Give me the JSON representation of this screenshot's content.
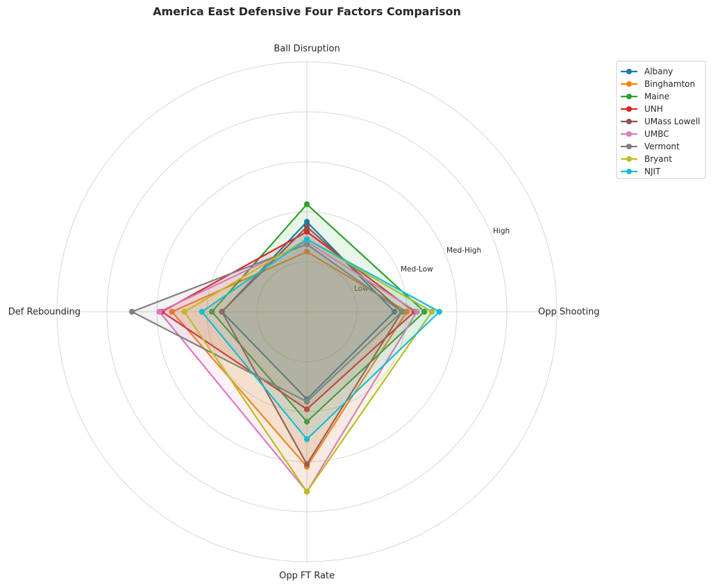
{
  "chart_data": {
    "type": "radar",
    "title": "America East Defensive Four Factors Comparison",
    "axes": [
      "Ball Disruption",
      "Opp Shooting",
      "Opp FT Rate",
      "Def Rebounding"
    ],
    "rlim": [
      0,
      5
    ],
    "ring_labels": [
      {
        "value": 1,
        "label": "Low"
      },
      {
        "value": 2,
        "label": "Med-Low"
      },
      {
        "value": 3,
        "label": "Med-High"
      },
      {
        "value": 4,
        "label": "High"
      }
    ],
    "grid": true,
    "legend_position": "upper-right-outside",
    "series": [
      {
        "name": "Albany",
        "color": "#1f77b4",
        "values": [
          1.8,
          1.75,
          1.75,
          1.7
        ]
      },
      {
        "name": "Binghamton",
        "color": "#ff7f0e",
        "values": [
          1.2,
          2.0,
          3.1,
          2.7
        ]
      },
      {
        "name": "Maine",
        "color": "#2ca02c",
        "values": [
          2.15,
          2.35,
          2.2,
          1.9
        ]
      },
      {
        "name": "UNH",
        "color": "#d62728",
        "values": [
          1.6,
          2.15,
          1.95,
          2.9
        ]
      },
      {
        "name": "UMass Lowell",
        "color": "#8c564b",
        "values": [
          1.7,
          1.9,
          3.05,
          1.7
        ]
      },
      {
        "name": "UMBC",
        "color": "#e377c2",
        "values": [
          1.4,
          2.2,
          3.6,
          2.95
        ]
      },
      {
        "name": "Vermont",
        "color": "#7f7f7f",
        "values": [
          1.35,
          1.9,
          1.8,
          3.5
        ]
      },
      {
        "name": "Bryant",
        "color": "#bcbd22",
        "values": [
          1.45,
          2.5,
          3.6,
          2.45
        ]
      },
      {
        "name": "NJIT",
        "color": "#17becf",
        "values": [
          1.45,
          2.65,
          2.55,
          2.1
        ]
      }
    ]
  }
}
